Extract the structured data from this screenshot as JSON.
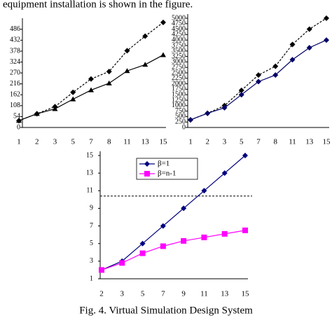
{
  "header_text": "equipment installation is shown in the figure.",
  "chart_data": [
    {
      "type": "line",
      "categories": [
        "1",
        "2",
        "3",
        "5",
        "7",
        "8",
        "11",
        "13",
        "15"
      ],
      "ylim": [
        0,
        520
      ],
      "yticks": [
        0,
        54,
        108,
        162,
        216,
        270,
        324,
        378,
        432,
        486
      ],
      "series": [
        {
          "color": "#000000",
          "style": "dashed",
          "marker": "diamond",
          "values": [
            34,
            68,
            103,
            174,
            240,
            277,
            380,
            452,
            520
          ]
        },
        {
          "color": "#000000",
          "style": "solid",
          "marker": "triangle",
          "values": [
            34,
            68,
            92,
            140,
            185,
            219,
            280,
            311,
            359
          ]
        }
      ]
    },
    {
      "type": "line",
      "categories": [
        "1",
        "2",
        "3",
        "5",
        "7",
        "8",
        "11",
        "13",
        "15"
      ],
      "ylim": [
        0,
        5000
      ],
      "yticks": [
        0,
        250,
        500,
        750,
        1000,
        1250,
        1500,
        1750,
        2000,
        2250,
        2500,
        2750,
        3000,
        3250,
        3500,
        3750,
        4000,
        4250,
        4500,
        4750,
        5000
      ],
      "series": [
        {
          "color": "#000000",
          "style": "dashed",
          "marker": "diamond",
          "values": [
            350,
            650,
            1000,
            1700,
            2400,
            2800,
            3800,
            4500,
            5000
          ]
        },
        {
          "color": "#000066",
          "style": "solid",
          "marker": "diamond",
          "values": [
            350,
            650,
            900,
            1500,
            2100,
            2400,
            3100,
            3650,
            4000
          ]
        }
      ]
    },
    {
      "type": "line",
      "categories": [
        "2",
        "3",
        "5",
        "7",
        "9",
        "11",
        "13",
        "15"
      ],
      "ylim": [
        1,
        15
      ],
      "yticks": [
        1,
        3,
        5,
        7,
        9,
        11,
        13,
        15
      ],
      "reference_line": 10.4,
      "legend": "top-left",
      "series": [
        {
          "name": "β=1",
          "color": "#000080",
          "style": "solid",
          "marker": "diamond",
          "values": [
            2,
            3,
            5,
            7,
            9,
            11,
            13,
            15
          ]
        },
        {
          "name": "β=n-1",
          "color": "#ff00ff",
          "style": "solid",
          "marker": "square",
          "values": [
            2,
            2.8,
            3.9,
            4.7,
            5.3,
            5.7,
            6.1,
            6.5
          ]
        }
      ]
    }
  ],
  "caption": "Fig. 4. Virtual Simulation Design System"
}
